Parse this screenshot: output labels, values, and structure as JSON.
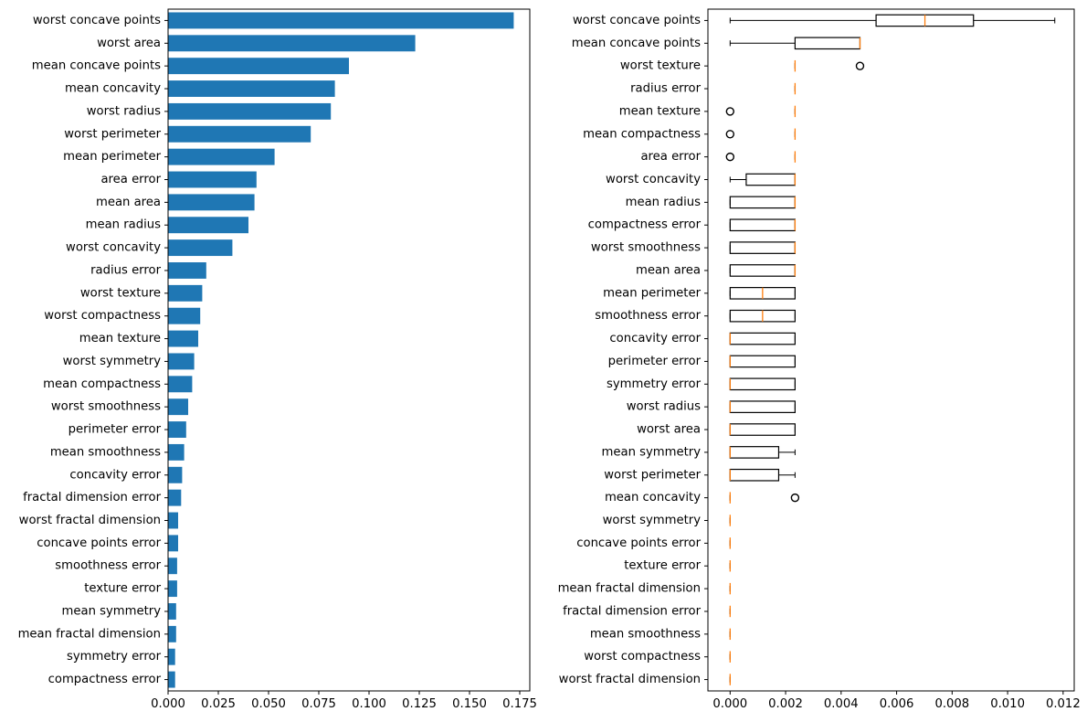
{
  "chart_data": [
    {
      "type": "bar",
      "orientation": "horizontal",
      "title": "",
      "xlabel": "",
      "ylabel": "",
      "color": "#1f77b4",
      "xlim": [
        0,
        0.18
      ],
      "xticks": [
        "0.000",
        "0.025",
        "0.050",
        "0.075",
        "0.100",
        "0.125",
        "0.150",
        "0.175"
      ],
      "xtick_values": [
        0,
        0.025,
        0.05,
        0.075,
        0.1,
        0.125,
        0.15,
        0.175
      ],
      "categories": [
        "worst concave points",
        "worst area",
        "mean concave points",
        "mean concavity",
        "worst radius",
        "worst perimeter",
        "mean perimeter",
        "area error",
        "mean area",
        "mean radius",
        "worst concavity",
        "radius error",
        "worst texture",
        "worst compactness",
        "mean texture",
        "worst symmetry",
        "mean compactness",
        "worst smoothness",
        "perimeter error",
        "mean smoothness",
        "concavity error",
        "fractal dimension error",
        "worst fractal dimension",
        "concave points error",
        "smoothness error",
        "texture error",
        "mean symmetry",
        "mean fractal dimension",
        "symmetry error",
        "compactness error"
      ],
      "values": [
        0.172,
        0.123,
        0.09,
        0.083,
        0.081,
        0.071,
        0.053,
        0.044,
        0.043,
        0.04,
        0.032,
        0.019,
        0.017,
        0.016,
        0.015,
        0.013,
        0.012,
        0.01,
        0.009,
        0.008,
        0.007,
        0.0065,
        0.005,
        0.005,
        0.0045,
        0.0045,
        0.004,
        0.004,
        0.0035,
        0.0035
      ]
    },
    {
      "type": "boxplot",
      "orientation": "horizontal",
      "title": "",
      "xlabel": "",
      "ylabel": "",
      "median_color": "#ff7f0e",
      "xlim": [
        -0.0008,
        0.0124
      ],
      "xticks": [
        "0.000",
        "0.002",
        "0.004",
        "0.006",
        "0.008",
        "0.010",
        "0.012"
      ],
      "xtick_values": [
        0,
        0.002,
        0.004,
        0.006,
        0.008,
        0.01,
        0.012
      ],
      "categories": [
        "worst concave points",
        "mean concave points",
        "worst texture",
        "radius error",
        "mean texture",
        "mean compactness",
        "area error",
        "worst concavity",
        "mean radius",
        "compactness error",
        "worst smoothness",
        "mean area",
        "mean perimeter",
        "smoothness error",
        "concavity error",
        "perimeter error",
        "symmetry error",
        "worst radius",
        "worst area",
        "mean symmetry",
        "worst perimeter",
        "mean concavity",
        "worst symmetry",
        "concave points error",
        "texture error",
        "mean fractal dimension",
        "fractal dimension error",
        "mean smoothness",
        "worst compactness",
        "worst fractal dimension"
      ],
      "boxes": [
        {
          "whislo": 0.0,
          "q1": 0.00526,
          "med": 0.00702,
          "q3": 0.00877,
          "whishi": 0.0117,
          "fliers": []
        },
        {
          "whislo": 0.0,
          "q1": 0.00234,
          "med": 0.00468,
          "q3": 0.00468,
          "whishi": 0.00468,
          "fliers": []
        },
        {
          "whislo": 0.00234,
          "q1": 0.00234,
          "med": 0.00234,
          "q3": 0.00234,
          "whishi": 0.00234,
          "fliers": [
            0.00468
          ]
        },
        {
          "whislo": 0.00234,
          "q1": 0.00234,
          "med": 0.00234,
          "q3": 0.00234,
          "whishi": 0.00234,
          "fliers": []
        },
        {
          "whislo": 0.00234,
          "q1": 0.00234,
          "med": 0.00234,
          "q3": 0.00234,
          "whishi": 0.00234,
          "fliers": [
            0.0
          ]
        },
        {
          "whislo": 0.00234,
          "q1": 0.00234,
          "med": 0.00234,
          "q3": 0.00234,
          "whishi": 0.00234,
          "fliers": [
            0.0
          ]
        },
        {
          "whislo": 0.00234,
          "q1": 0.00234,
          "med": 0.00234,
          "q3": 0.00234,
          "whishi": 0.00234,
          "fliers": [
            0.0
          ]
        },
        {
          "whislo": 0.0,
          "q1": 0.00058,
          "med": 0.00234,
          "q3": 0.00234,
          "whishi": 0.00234,
          "fliers": []
        },
        {
          "whislo": 0.0,
          "q1": 0.0,
          "med": 0.00234,
          "q3": 0.00234,
          "whishi": 0.00234,
          "fliers": []
        },
        {
          "whislo": 0.0,
          "q1": 0.0,
          "med": 0.00234,
          "q3": 0.00234,
          "whishi": 0.00234,
          "fliers": []
        },
        {
          "whislo": 0.0,
          "q1": 0.0,
          "med": 0.00234,
          "q3": 0.00234,
          "whishi": 0.00234,
          "fliers": []
        },
        {
          "whislo": 0.0,
          "q1": 0.0,
          "med": 0.00234,
          "q3": 0.00234,
          "whishi": 0.00234,
          "fliers": []
        },
        {
          "whislo": 0.0,
          "q1": 0.0,
          "med": 0.00117,
          "q3": 0.00234,
          "whishi": 0.00234,
          "fliers": []
        },
        {
          "whislo": 0.0,
          "q1": 0.0,
          "med": 0.00117,
          "q3": 0.00234,
          "whishi": 0.00234,
          "fliers": []
        },
        {
          "whislo": 0.0,
          "q1": 0.0,
          "med": 0.0,
          "q3": 0.00234,
          "whishi": 0.00234,
          "fliers": []
        },
        {
          "whislo": 0.0,
          "q1": 0.0,
          "med": 0.0,
          "q3": 0.00234,
          "whishi": 0.00234,
          "fliers": []
        },
        {
          "whislo": 0.0,
          "q1": 0.0,
          "med": 0.0,
          "q3": 0.00234,
          "whishi": 0.00234,
          "fliers": []
        },
        {
          "whislo": 0.0,
          "q1": 0.0,
          "med": 0.0,
          "q3": 0.00234,
          "whishi": 0.00234,
          "fliers": []
        },
        {
          "whislo": 0.0,
          "q1": 0.0,
          "med": 0.0,
          "q3": 0.00234,
          "whishi": 0.00234,
          "fliers": []
        },
        {
          "whislo": 0.0,
          "q1": 0.0,
          "med": 0.0,
          "q3": 0.00175,
          "whishi": 0.00234,
          "fliers": []
        },
        {
          "whislo": 0.0,
          "q1": 0.0,
          "med": 0.0,
          "q3": 0.00175,
          "whishi": 0.00234,
          "fliers": []
        },
        {
          "whislo": 0.0,
          "q1": 0.0,
          "med": 0.0,
          "q3": 0.0,
          "whishi": 0.0,
          "fliers": [
            0.00234
          ]
        },
        {
          "whislo": 0.0,
          "q1": 0.0,
          "med": 0.0,
          "q3": 0.0,
          "whishi": 0.0,
          "fliers": []
        },
        {
          "whislo": 0.0,
          "q1": 0.0,
          "med": 0.0,
          "q3": 0.0,
          "whishi": 0.0,
          "fliers": []
        },
        {
          "whislo": 0.0,
          "q1": 0.0,
          "med": 0.0,
          "q3": 0.0,
          "whishi": 0.0,
          "fliers": []
        },
        {
          "whislo": 0.0,
          "q1": 0.0,
          "med": 0.0,
          "q3": 0.0,
          "whishi": 0.0,
          "fliers": []
        },
        {
          "whislo": 0.0,
          "q1": 0.0,
          "med": 0.0,
          "q3": 0.0,
          "whishi": 0.0,
          "fliers": []
        },
        {
          "whislo": 0.0,
          "q1": 0.0,
          "med": 0.0,
          "q3": 0.0,
          "whishi": 0.0,
          "fliers": []
        },
        {
          "whislo": 0.0,
          "q1": 0.0,
          "med": 0.0,
          "q3": 0.0,
          "whishi": 0.0,
          "fliers": []
        },
        {
          "whislo": 0.0,
          "q1": 0.0,
          "med": 0.0,
          "q3": 0.0,
          "whishi": 0.0,
          "fliers": []
        }
      ]
    }
  ]
}
